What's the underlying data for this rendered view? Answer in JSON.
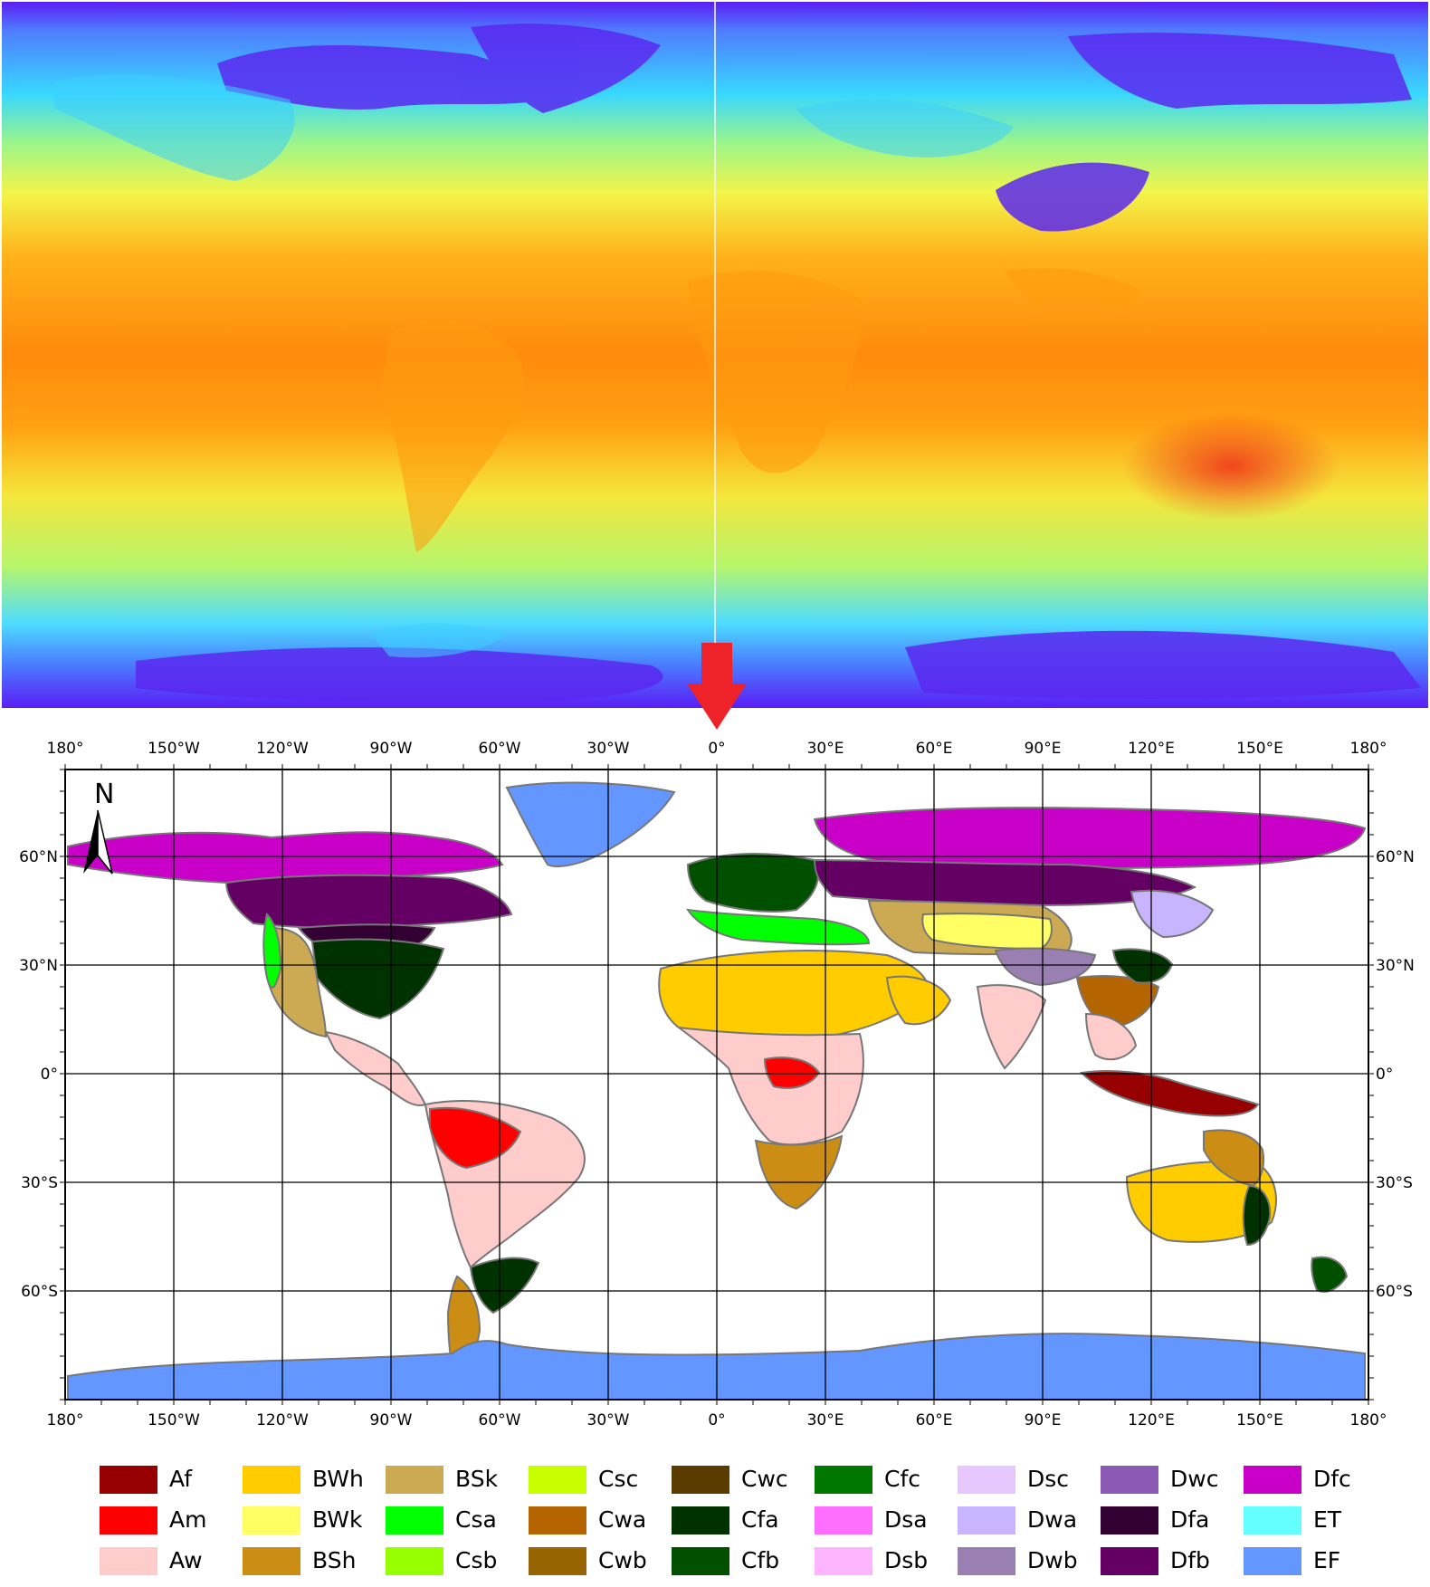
{
  "top_map": {
    "palette": [
      "#5b1ef5",
      "#4f7cff",
      "#38d7ff",
      "#9bf58a",
      "#f2f54a",
      "#ffb21a",
      "#ff8a0c",
      "#f0381c"
    ],
    "arrow_color": "#ee2229"
  },
  "koppen_map": {
    "north_label": "N",
    "lon_labels": [
      "180°",
      "150°W",
      "120°W",
      "90°W",
      "60°W",
      "30°W",
      "0°",
      "30°E",
      "60°E",
      "90°E",
      "120°E",
      "150°E",
      "180°"
    ],
    "lat_labels": [
      "60°N",
      "30°N",
      "0°",
      "30°S",
      "60°S"
    ],
    "ocean_color": "#ffffff",
    "border_color": "#777777",
    "grid_color": "#000000"
  },
  "legend": [
    {
      "code": "Af",
      "color": "#960000"
    },
    {
      "code": "Am",
      "color": "#ff0000"
    },
    {
      "code": "Aw",
      "color": "#ffcccc"
    },
    {
      "code": "BWh",
      "color": "#ffcc00"
    },
    {
      "code": "BWk",
      "color": "#ffff64"
    },
    {
      "code": "BSh",
      "color": "#cc8d14"
    },
    {
      "code": "BSk",
      "color": "#ccaa54"
    },
    {
      "code": "Csa",
      "color": "#00ff00"
    },
    {
      "code": "Csb",
      "color": "#96ff00"
    },
    {
      "code": "Csc",
      "color": "#c8ff00"
    },
    {
      "code": "Cwa",
      "color": "#b46400"
    },
    {
      "code": "Cwb",
      "color": "#966400"
    },
    {
      "code": "Cwc",
      "color": "#5a3c00"
    },
    {
      "code": "Cfa",
      "color": "#003200"
    },
    {
      "code": "Cfb",
      "color": "#005000"
    },
    {
      "code": "Cfc",
      "color": "#007800"
    },
    {
      "code": "Dsa",
      "color": "#ff6eff"
    },
    {
      "code": "Dsb",
      "color": "#ffb4ff"
    },
    {
      "code": "Dsc",
      "color": "#e6c8ff"
    },
    {
      "code": "Dwa",
      "color": "#c8b4ff"
    },
    {
      "code": "Dwb",
      "color": "#9a7fb3"
    },
    {
      "code": "Dwc",
      "color": "#8c59b4"
    },
    {
      "code": "Dfa",
      "color": "#320032"
    },
    {
      "code": "Dfb",
      "color": "#640064"
    },
    {
      "code": "Dfc",
      "color": "#c800c8"
    },
    {
      "code": "ET",
      "color": "#64ffff"
    },
    {
      "code": "EF",
      "color": "#6496ff"
    }
  ]
}
